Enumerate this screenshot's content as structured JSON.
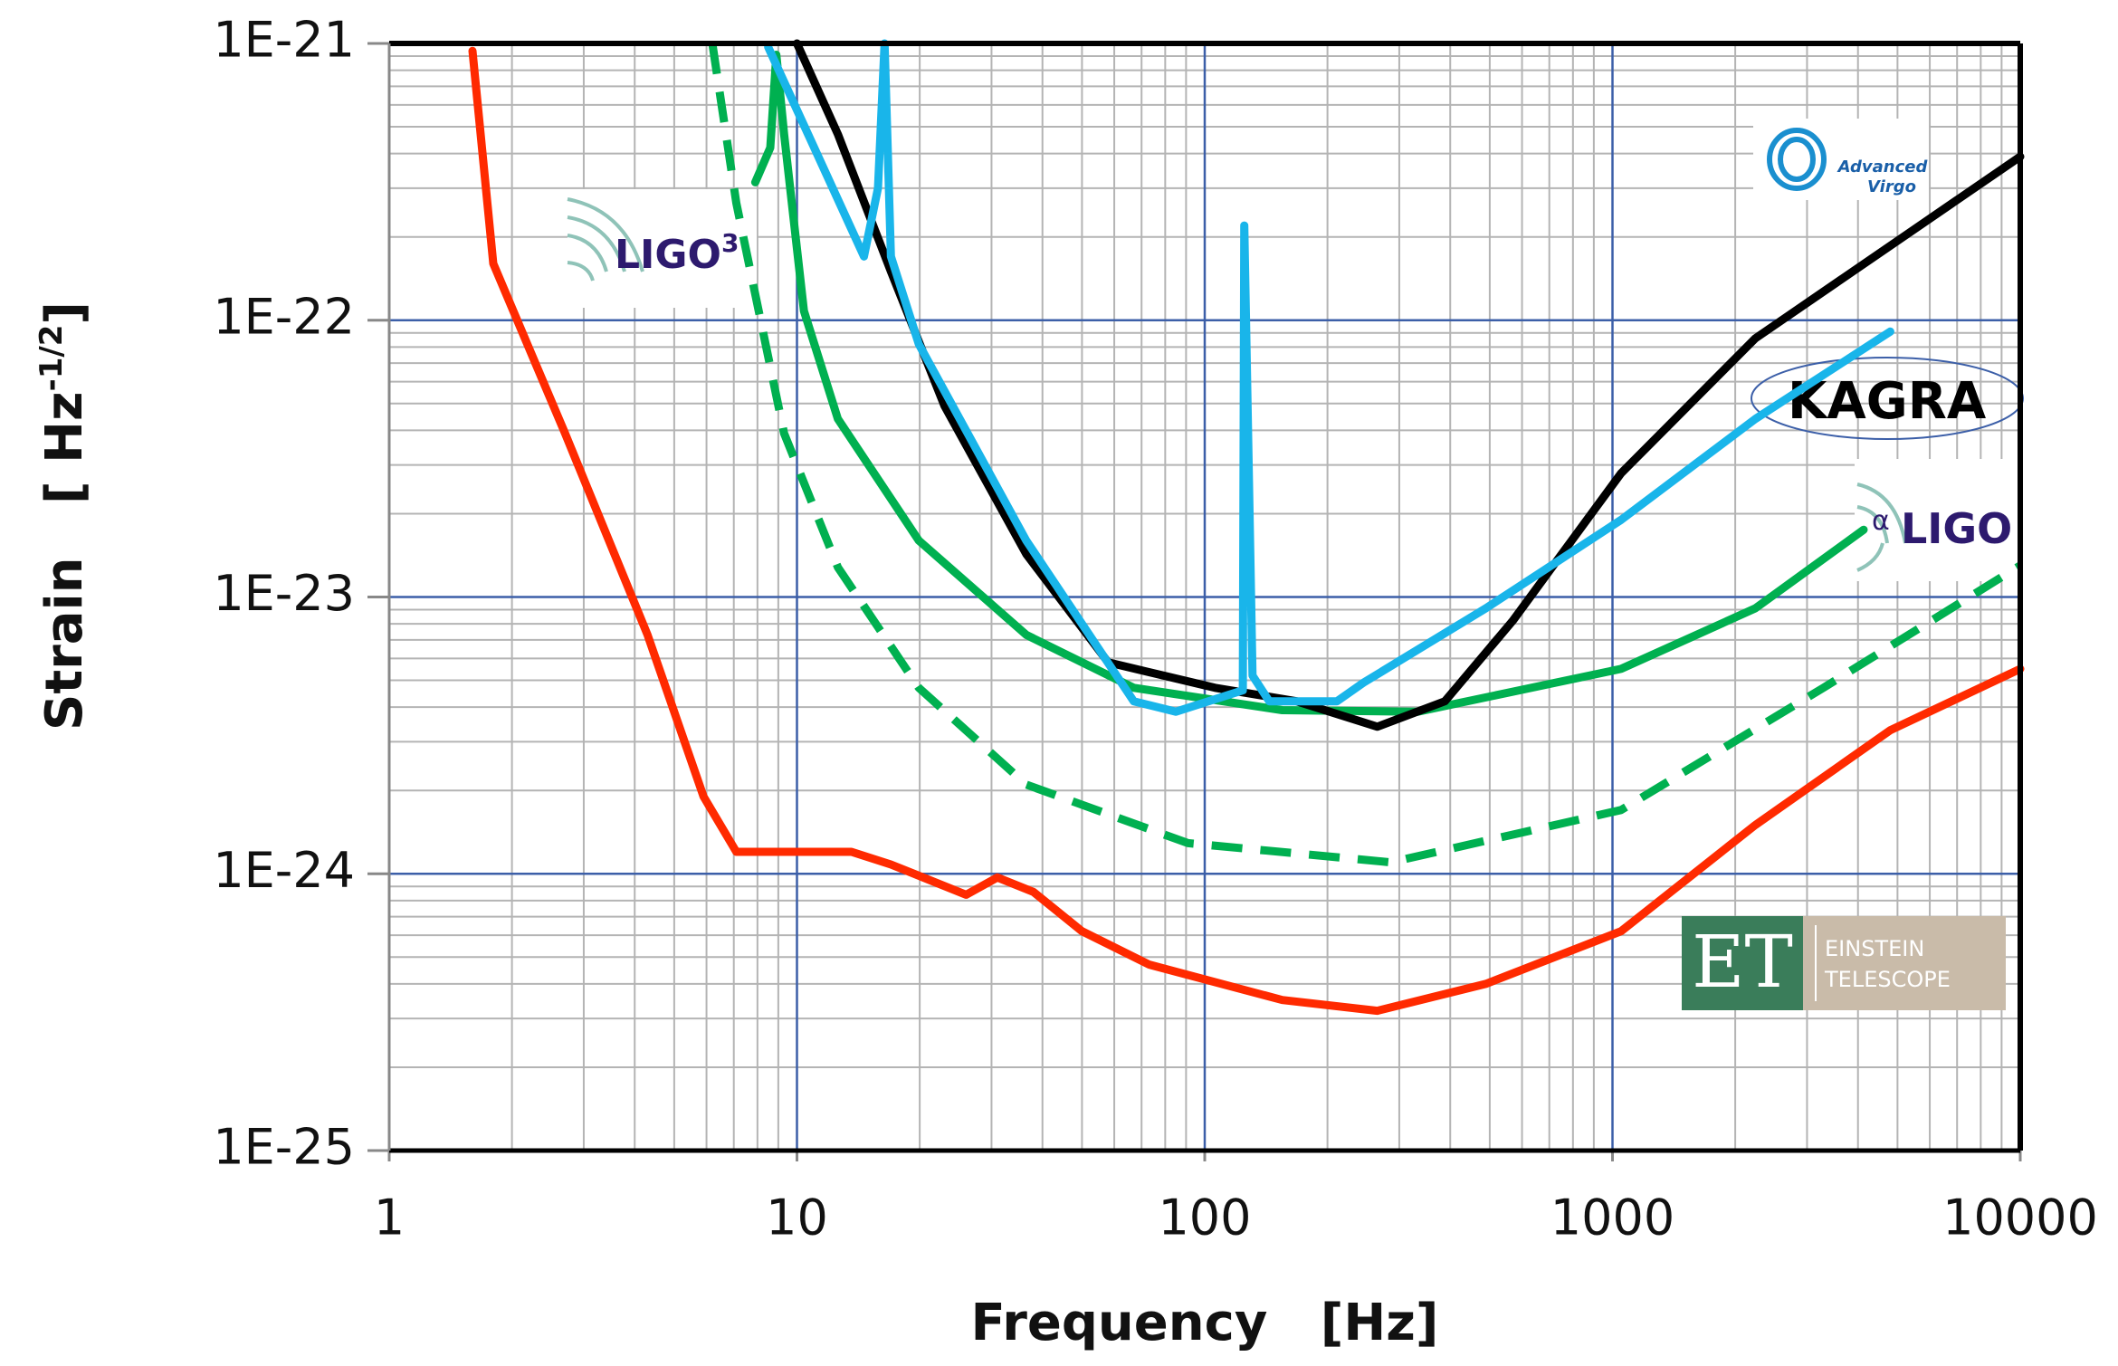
{
  "chart_data": {
    "type": "line",
    "x_label": "Frequency   [Hz]",
    "y_label": {
      "text": "Strain   [ Hz",
      "superscript": "-1/2",
      "suffix": "]"
    },
    "log_x": true,
    "log_y": true,
    "grid": true,
    "minor_grid": true,
    "xlim": [
      1,
      10000
    ],
    "xticks": [
      1,
      10,
      100,
      1000,
      10000
    ],
    "ylim": [
      1e-25,
      1e-21
    ],
    "yticks": [
      {
        "value": 1e-25,
        "label": "1E-25"
      },
      {
        "value": 1e-24,
        "label": "1E-24"
      },
      {
        "value": 1e-23,
        "label": "1E-23"
      },
      {
        "value": 1e-22,
        "label": "1E-22"
      },
      {
        "value": 1e-21,
        "label": "1E-21"
      }
    ],
    "series": [
      {
        "color": "#ff2a00",
        "style": "solid",
        "x": [
          1.6,
          1.8,
          2.7,
          4.3,
          5.9,
          7.1,
          7.9,
          13.6,
          17,
          26,
          31,
          38,
          50,
          73,
          155,
          265,
          489,
          1050,
          2240,
          4800,
          10000
        ],
        "values": [
          9.4e-22,
          1.6e-22,
          3.9e-23,
          7.3e-24,
          1.9e-24,
          1.2e-24,
          1.2e-24,
          1.2e-24,
          1.08e-24,
          8.4e-25,
          9.7e-25,
          8.6e-25,
          6.2e-25,
          4.7e-25,
          3.5e-25,
          3.2e-25,
          4e-25,
          6.2e-25,
          1.5e-24,
          3.3e-24,
          5.5e-24
        ]
      },
      {
        "color": "#00b050",
        "style": "dashed",
        "x": [
          6.2,
          7.1,
          9.3,
          12.6,
          19.9,
          36.5,
          91,
          286,
          1050,
          3290,
          10000
        ],
        "values": [
          1e-21,
          2.65e-22,
          3.9e-23,
          1.28e-23,
          4.7e-24,
          2.1e-24,
          1.29e-24,
          1.1e-24,
          1.7e-24,
          4.7e-24,
          1.3e-23
        ]
      },
      {
        "color": "#00b050",
        "style": "solid",
        "x": [
          7.9,
          8.6,
          8.9,
          9.3,
          10.4,
          12.6,
          19.9,
          36.5,
          67,
          155,
          333,
          1050,
          2240,
          4130
        ],
        "values": [
          3.15e-22,
          4.2e-22,
          9.1e-22,
          4.7e-22,
          1.08e-22,
          4.4e-23,
          1.6e-23,
          7.3e-24,
          4.7e-24,
          3.9e-24,
          3.85e-24,
          5.5e-24,
          9.1e-24,
          1.75e-23
        ]
      },
      {
        "color": "#000000",
        "style": "solid",
        "x": [
          10,
          12.6,
          17,
          23,
          36.5,
          58,
          106,
          168,
          265,
          388,
          569,
          1050,
          2240,
          10000
        ],
        "values": [
          1e-21,
          4.7e-22,
          1.5e-22,
          4.9e-23,
          1.43e-23,
          5.8e-24,
          4.7e-24,
          4.2e-24,
          3.4e-24,
          4.2e-24,
          8.2e-24,
          2.8e-23,
          8.6e-23,
          3.9e-22
        ]
      },
      {
        "color": "#19b5ea",
        "style": "solid",
        "x": [
          8.5,
          14.6,
          15.8,
          16.4,
          17,
          19.9,
          36.5,
          67,
          85,
          124,
          125,
          131,
          144,
          211,
          245,
          489,
          1050,
          2240,
          4800
        ],
        "values": [
          9.7e-22,
          1.7e-22,
          3e-22,
          1e-21,
          1.7e-22,
          8.2e-23,
          1.6e-23,
          4.2e-24,
          3.85e-24,
          4.6e-24,
          2.2e-22,
          5.2e-24,
          4.2e-24,
          4.2e-24,
          4.9e-24,
          9.1e-24,
          1.9e-23,
          4.4e-23,
          9.1e-23
        ]
      }
    ],
    "logos": {
      "ligo3": {
        "name": "LIGO",
        "superscript": "3"
      },
      "virgo": {
        "line1": "Advanced",
        "line2": "Virgo"
      },
      "kagra": {
        "name": "KAGRA"
      },
      "aligo": {
        "prefix": "α",
        "name": "LIGO"
      },
      "et": {
        "short": "ET",
        "line1": "EINSTEIN",
        "line2": "TELESCOPE"
      }
    }
  }
}
